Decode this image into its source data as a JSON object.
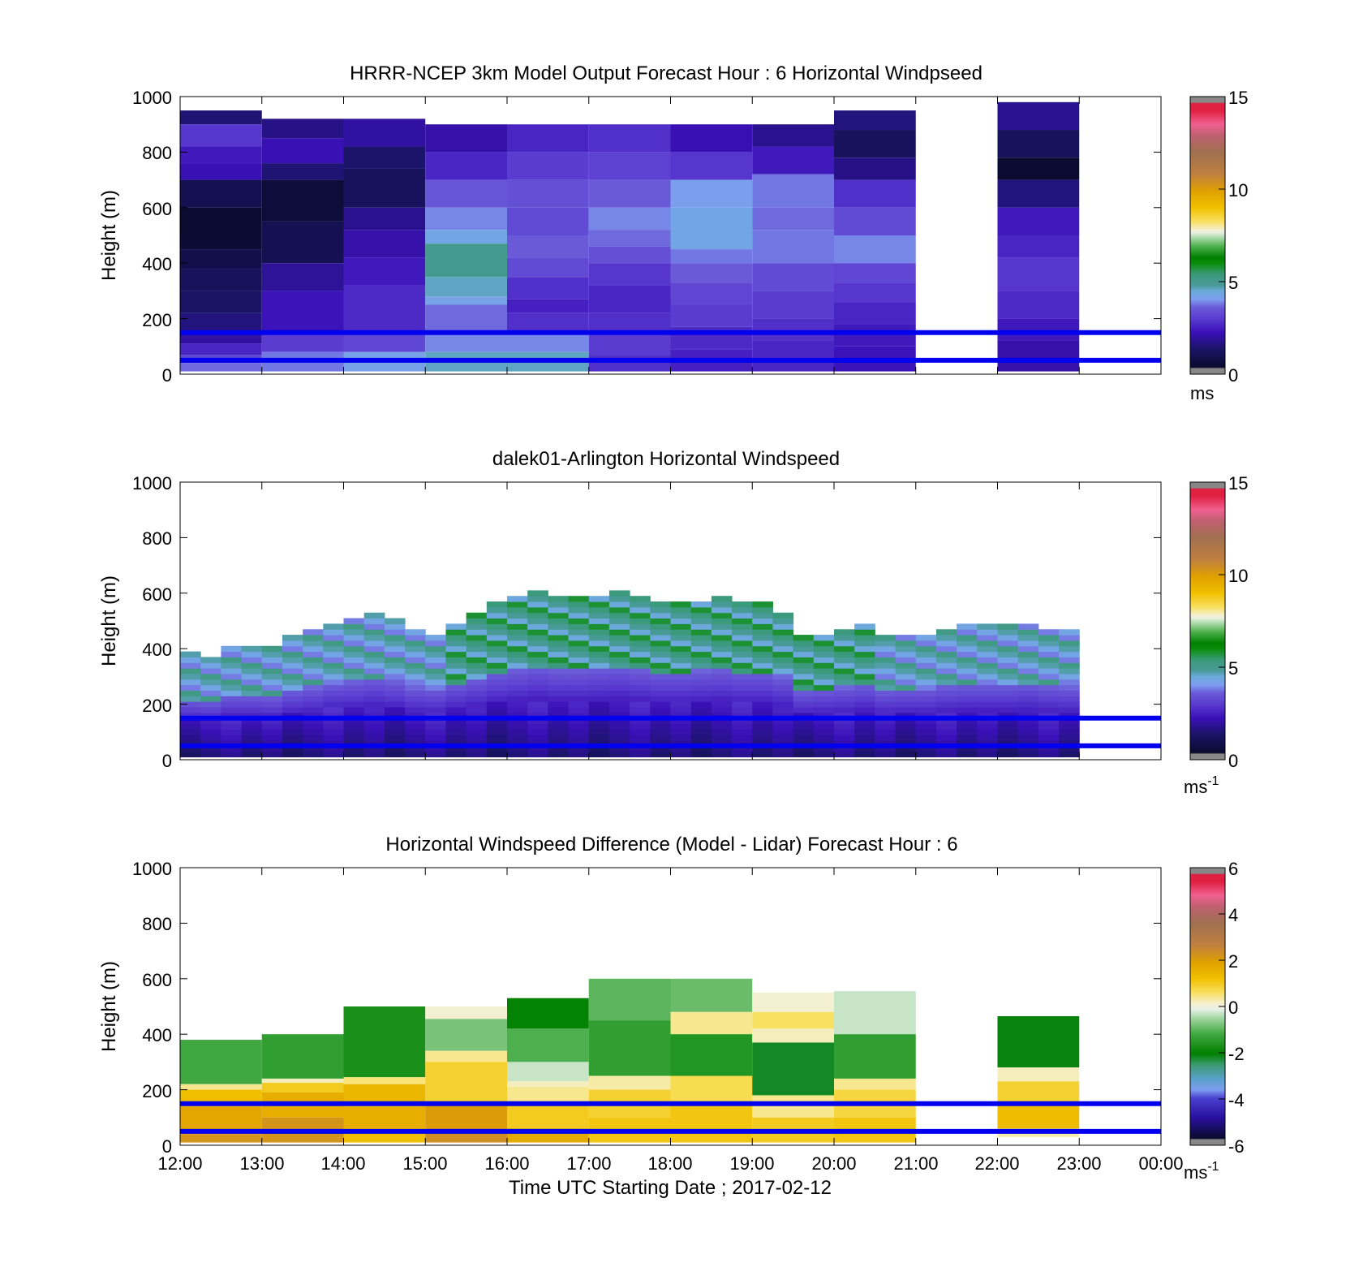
{
  "figure": {
    "xlabel": "Time UTC  Starting Date ; 2017-02-12",
    "x_ticks": [
      "12:00",
      "13:00",
      "14:00",
      "15:00",
      "16:00",
      "17:00",
      "18:00",
      "19:00",
      "20:00",
      "21:00",
      "22:00",
      "23:00",
      "00:00"
    ]
  },
  "chart_data": [
    {
      "type": "heatmap",
      "title": "HRRR-NCEP 3km Model Output   Forecast Hour : 6 Horizontal Windpseed",
      "ylabel": "Height (m)",
      "y_ticks": [
        "1000",
        "800",
        "600",
        "400",
        "200",
        "0"
      ],
      "ylim": [
        0,
        1000
      ],
      "x_range_hours_utc": [
        12,
        24
      ],
      "colorbar": {
        "ticks": [
          "15",
          "10",
          "5",
          "0"
        ],
        "range": [
          0,
          15
        ],
        "unit": "ms",
        "unit_sup": "",
        "colormap": "windspeed"
      },
      "reference_heights_m": [
        50,
        150
      ],
      "columns": [
        {
          "start": 12,
          "end": 13,
          "top": 1000,
          "rows": [
            [
              950,
              900,
              1.5
            ],
            [
              900,
              820,
              2.9
            ],
            [
              820,
              760,
              2.4
            ],
            [
              760,
              700,
              2.2
            ],
            [
              700,
              600,
              1.0
            ],
            [
              600,
              500,
              0.0
            ],
            [
              500,
              450,
              0.5
            ],
            [
              450,
              380,
              0.9
            ],
            [
              380,
              300,
              1.2
            ],
            [
              300,
              220,
              1.3
            ],
            [
              220,
              150,
              1.6
            ],
            [
              150,
              110,
              2.0
            ],
            [
              110,
              70,
              2.6
            ],
            [
              70,
              40,
              3.2
            ],
            [
              40,
              10,
              3.7
            ]
          ]
        },
        {
          "start": 13,
          "end": 14,
          "top": 1000,
          "rows": [
            [
              920,
              850,
              1.7
            ],
            [
              850,
              760,
              2.2
            ],
            [
              760,
              700,
              1.5
            ],
            [
              700,
              550,
              0.6
            ],
            [
              550,
              400,
              1.0
            ],
            [
              400,
              300,
              1.9
            ],
            [
              300,
              150,
              2.3
            ],
            [
              150,
              80,
              3.0
            ],
            [
              80,
              10,
              3.8
            ]
          ]
        },
        {
          "start": 14,
          "end": 15,
          "top": 1000,
          "rows": [
            [
              920,
              820,
              2.0
            ],
            [
              820,
              740,
              1.4
            ],
            [
              740,
              600,
              1.2
            ],
            [
              600,
              520,
              1.8
            ],
            [
              520,
              420,
              2.1
            ],
            [
              420,
              320,
              2.4
            ],
            [
              320,
              150,
              2.7
            ],
            [
              150,
              80,
              3.2
            ],
            [
              80,
              10,
              4.2
            ]
          ]
        },
        {
          "start": 15,
          "end": 16,
          "top": 1000,
          "rows": [
            [
              900,
              800,
              2.1
            ],
            [
              800,
              700,
              2.6
            ],
            [
              700,
              600,
              3.5
            ],
            [
              600,
              520,
              3.9
            ],
            [
              520,
              470,
              4.3
            ],
            [
              470,
              350,
              5.0
            ],
            [
              350,
              280,
              4.6
            ],
            [
              280,
              250,
              4.2
            ],
            [
              250,
              150,
              3.7
            ],
            [
              150,
              80,
              3.9
            ],
            [
              80,
              10,
              4.6
            ]
          ]
        },
        {
          "start": 16,
          "end": 17,
          "top": 1000,
          "rows": [
            [
              900,
              800,
              2.6
            ],
            [
              800,
              700,
              3.0
            ],
            [
              700,
              600,
              3.4
            ],
            [
              600,
              500,
              3.3
            ],
            [
              500,
              420,
              3.6
            ],
            [
              420,
              350,
              3.3
            ],
            [
              350,
              270,
              2.8
            ],
            [
              270,
              220,
              2.5
            ],
            [
              220,
              150,
              2.8
            ],
            [
              150,
              80,
              3.9
            ],
            [
              80,
              10,
              4.6
            ]
          ]
        },
        {
          "start": 17,
          "end": 18,
          "top": 1000,
          "rows": [
            [
              900,
              800,
              2.8
            ],
            [
              800,
              700,
              3.1
            ],
            [
              700,
              600,
              3.6
            ],
            [
              600,
              520,
              3.9
            ],
            [
              520,
              460,
              3.7
            ],
            [
              460,
              400,
              3.4
            ],
            [
              400,
              320,
              2.9
            ],
            [
              320,
              220,
              2.6
            ],
            [
              220,
              150,
              2.8
            ],
            [
              150,
              70,
              3.0
            ],
            [
              70,
              10,
              2.8
            ]
          ]
        },
        {
          "start": 18,
          "end": 19,
          "top": 1000,
          "rows": [
            [
              900,
              800,
              2.2
            ],
            [
              800,
              700,
              2.9
            ],
            [
              700,
              600,
              4.1
            ],
            [
              600,
              450,
              4.3
            ],
            [
              450,
              400,
              3.8
            ],
            [
              400,
              330,
              3.6
            ],
            [
              330,
              250,
              3.2
            ],
            [
              250,
              170,
              3.0
            ],
            [
              170,
              90,
              2.7
            ],
            [
              90,
              10,
              2.5
            ]
          ]
        },
        {
          "start": 19,
          "end": 20,
          "top": 1000,
          "rows": [
            [
              900,
              820,
              1.8
            ],
            [
              820,
              720,
              2.4
            ],
            [
              720,
              600,
              3.8
            ],
            [
              600,
              520,
              3.7
            ],
            [
              520,
              400,
              3.8
            ],
            [
              400,
              300,
              3.3
            ],
            [
              300,
              200,
              3.0
            ],
            [
              200,
              120,
              2.8
            ],
            [
              120,
              10,
              2.6
            ]
          ]
        },
        {
          "start": 20,
          "end": 21,
          "top": 1000,
          "rows": [
            [
              950,
              880,
              1.6
            ],
            [
              880,
              780,
              1.2
            ],
            [
              780,
              700,
              1.7
            ],
            [
              700,
              600,
              2.8
            ],
            [
              600,
              500,
              3.3
            ],
            [
              500,
              400,
              3.9
            ],
            [
              400,
              330,
              3.2
            ],
            [
              330,
              260,
              2.9
            ],
            [
              260,
              180,
              2.6
            ],
            [
              180,
              100,
              2.4
            ],
            [
              100,
              10,
              2.3
            ]
          ]
        },
        {
          "start": 22,
          "end": 23,
          "top": 1000,
          "rows": [
            [
              980,
              880,
              1.8
            ],
            [
              880,
              780,
              1.2
            ],
            [
              780,
              700,
              0.3
            ],
            [
              700,
              600,
              1.6
            ],
            [
              600,
              500,
              2.4
            ],
            [
              500,
              420,
              2.6
            ],
            [
              420,
              300,
              2.9
            ],
            [
              300,
              200,
              2.7
            ],
            [
              200,
              120,
              2.4
            ],
            [
              120,
              10,
              2.1
            ]
          ]
        }
      ]
    },
    {
      "type": "heatmap",
      "title": "dalek01-Arlington  Horizontal Windspeed",
      "ylabel": "Height (m)",
      "y_ticks": [
        "1000",
        "800",
        "600",
        "400",
        "200",
        "0"
      ],
      "ylim": [
        0,
        1000
      ],
      "x_range_hours_utc": [
        12,
        24
      ],
      "colorbar": {
        "ticks": [
          "15",
          "10",
          "5",
          "0"
        ],
        "range": [
          0,
          15
        ],
        "unit": "ms",
        "unit_sup": "-1",
        "colormap": "windspeed"
      },
      "reference_heights_m": [
        50,
        150
      ],
      "column_width_hours": 0.25,
      "profile_tops_m": [
        380,
        370,
        410,
        410,
        400,
        440,
        460,
        490,
        500,
        520,
        500,
        460,
        450,
        490,
        520,
        560,
        580,
        600,
        580,
        580,
        590,
        600,
        580,
        560,
        560,
        570,
        580,
        560,
        560,
        530,
        440,
        450,
        460,
        480,
        440,
        450,
        450,
        470,
        480,
        480,
        480,
        490,
        470,
        460
      ]
    },
    {
      "type": "heatmap",
      "title": "Horizontal Windspeed Difference (Model - Lidar) Forecast Hour : 6",
      "ylabel": "Height (m)",
      "y_ticks": [
        "1000",
        "800",
        "600",
        "400",
        "200",
        "0"
      ],
      "ylim": [
        0,
        1000
      ],
      "x_range_hours_utc": [
        12,
        24
      ],
      "colorbar": {
        "ticks": [
          "6",
          "4",
          "2",
          "0",
          "-2",
          "-4",
          "-6"
        ],
        "range": [
          -6,
          6
        ],
        "unit": "ms",
        "unit_sup": "-1",
        "colormap": "difference"
      },
      "reference_heights_m": [
        50,
        150
      ],
      "columns": [
        {
          "start": 12,
          "end": 13,
          "top": 380,
          "rows": [
            [
              380,
              220,
              -1.2
            ],
            [
              220,
              200,
              0.4
            ],
            [
              200,
              140,
              1.2
            ],
            [
              140,
              40,
              1.8
            ],
            [
              40,
              10,
              2.2
            ]
          ]
        },
        {
          "start": 13,
          "end": 14,
          "top": 400,
          "rows": [
            [
              400,
              240,
              -1.4
            ],
            [
              240,
              225,
              0.2
            ],
            [
              225,
              190,
              1.0
            ],
            [
              190,
              100,
              1.6
            ],
            [
              100,
              10,
              2.2
            ]
          ]
        },
        {
          "start": 14,
          "end": 15,
          "top": 500,
          "rows": [
            [
              500,
              245,
              -1.7
            ],
            [
              245,
              220,
              0.5
            ],
            [
              220,
              140,
              1.4
            ],
            [
              140,
              60,
              1.6
            ],
            [
              60,
              10,
              1.2
            ]
          ]
        },
        {
          "start": 15,
          "end": 16,
          "top": 500,
          "rows": [
            [
              500,
              455,
              0.1
            ],
            [
              455,
              340,
              -0.8
            ],
            [
              340,
              300,
              0.4
            ],
            [
              300,
              150,
              0.9
            ],
            [
              150,
              60,
              2.0
            ],
            [
              60,
              10,
              2.3
            ]
          ]
        },
        {
          "start": 16,
          "end": 17,
          "top": 530,
          "rows": [
            [
              530,
              420,
              -2.0
            ],
            [
              420,
              300,
              -1.1
            ],
            [
              300,
              230,
              -0.3
            ],
            [
              230,
              210,
              0.2
            ],
            [
              210,
              150,
              0.4
            ],
            [
              150,
              60,
              1.0
            ],
            [
              60,
              10,
              1.7
            ]
          ]
        },
        {
          "start": 17,
          "end": 18,
          "top": 600,
          "rows": [
            [
              600,
              450,
              -1.0
            ],
            [
              450,
              250,
              -1.4
            ],
            [
              250,
              200,
              0.3
            ],
            [
              200,
              100,
              0.9
            ],
            [
              100,
              10,
              1.1
            ]
          ]
        },
        {
          "start": 18,
          "end": 19,
          "top": 600,
          "rows": [
            [
              600,
              480,
              -0.9
            ],
            [
              480,
              400,
              0.4
            ],
            [
              400,
              250,
              -1.6
            ],
            [
              250,
              150,
              0.7
            ],
            [
              150,
              10,
              1.1
            ]
          ]
        },
        {
          "start": 19,
          "end": 20,
          "top": 550,
          "rows": [
            [
              550,
              480,
              0.1
            ],
            [
              480,
              420,
              0.6
            ],
            [
              420,
              370,
              0.2
            ],
            [
              370,
              180,
              -2.2
            ],
            [
              180,
              100,
              0.4
            ],
            [
              100,
              10,
              1.0
            ]
          ]
        },
        {
          "start": 20,
          "end": 21,
          "top": 555,
          "rows": [
            [
              555,
              400,
              -0.3
            ],
            [
              400,
              240,
              -1.4
            ],
            [
              240,
              200,
              0.4
            ],
            [
              200,
              100,
              0.8
            ],
            [
              100,
              10,
              1.1
            ]
          ]
        },
        {
          "start": 22,
          "end": 23,
          "top": 465,
          "rows": [
            [
              465,
              280,
              -2.1
            ],
            [
              280,
              230,
              0.2
            ],
            [
              230,
              150,
              0.9
            ],
            [
              150,
              60,
              1.3
            ],
            [
              60,
              30,
              0.3
            ]
          ]
        }
      ]
    }
  ]
}
